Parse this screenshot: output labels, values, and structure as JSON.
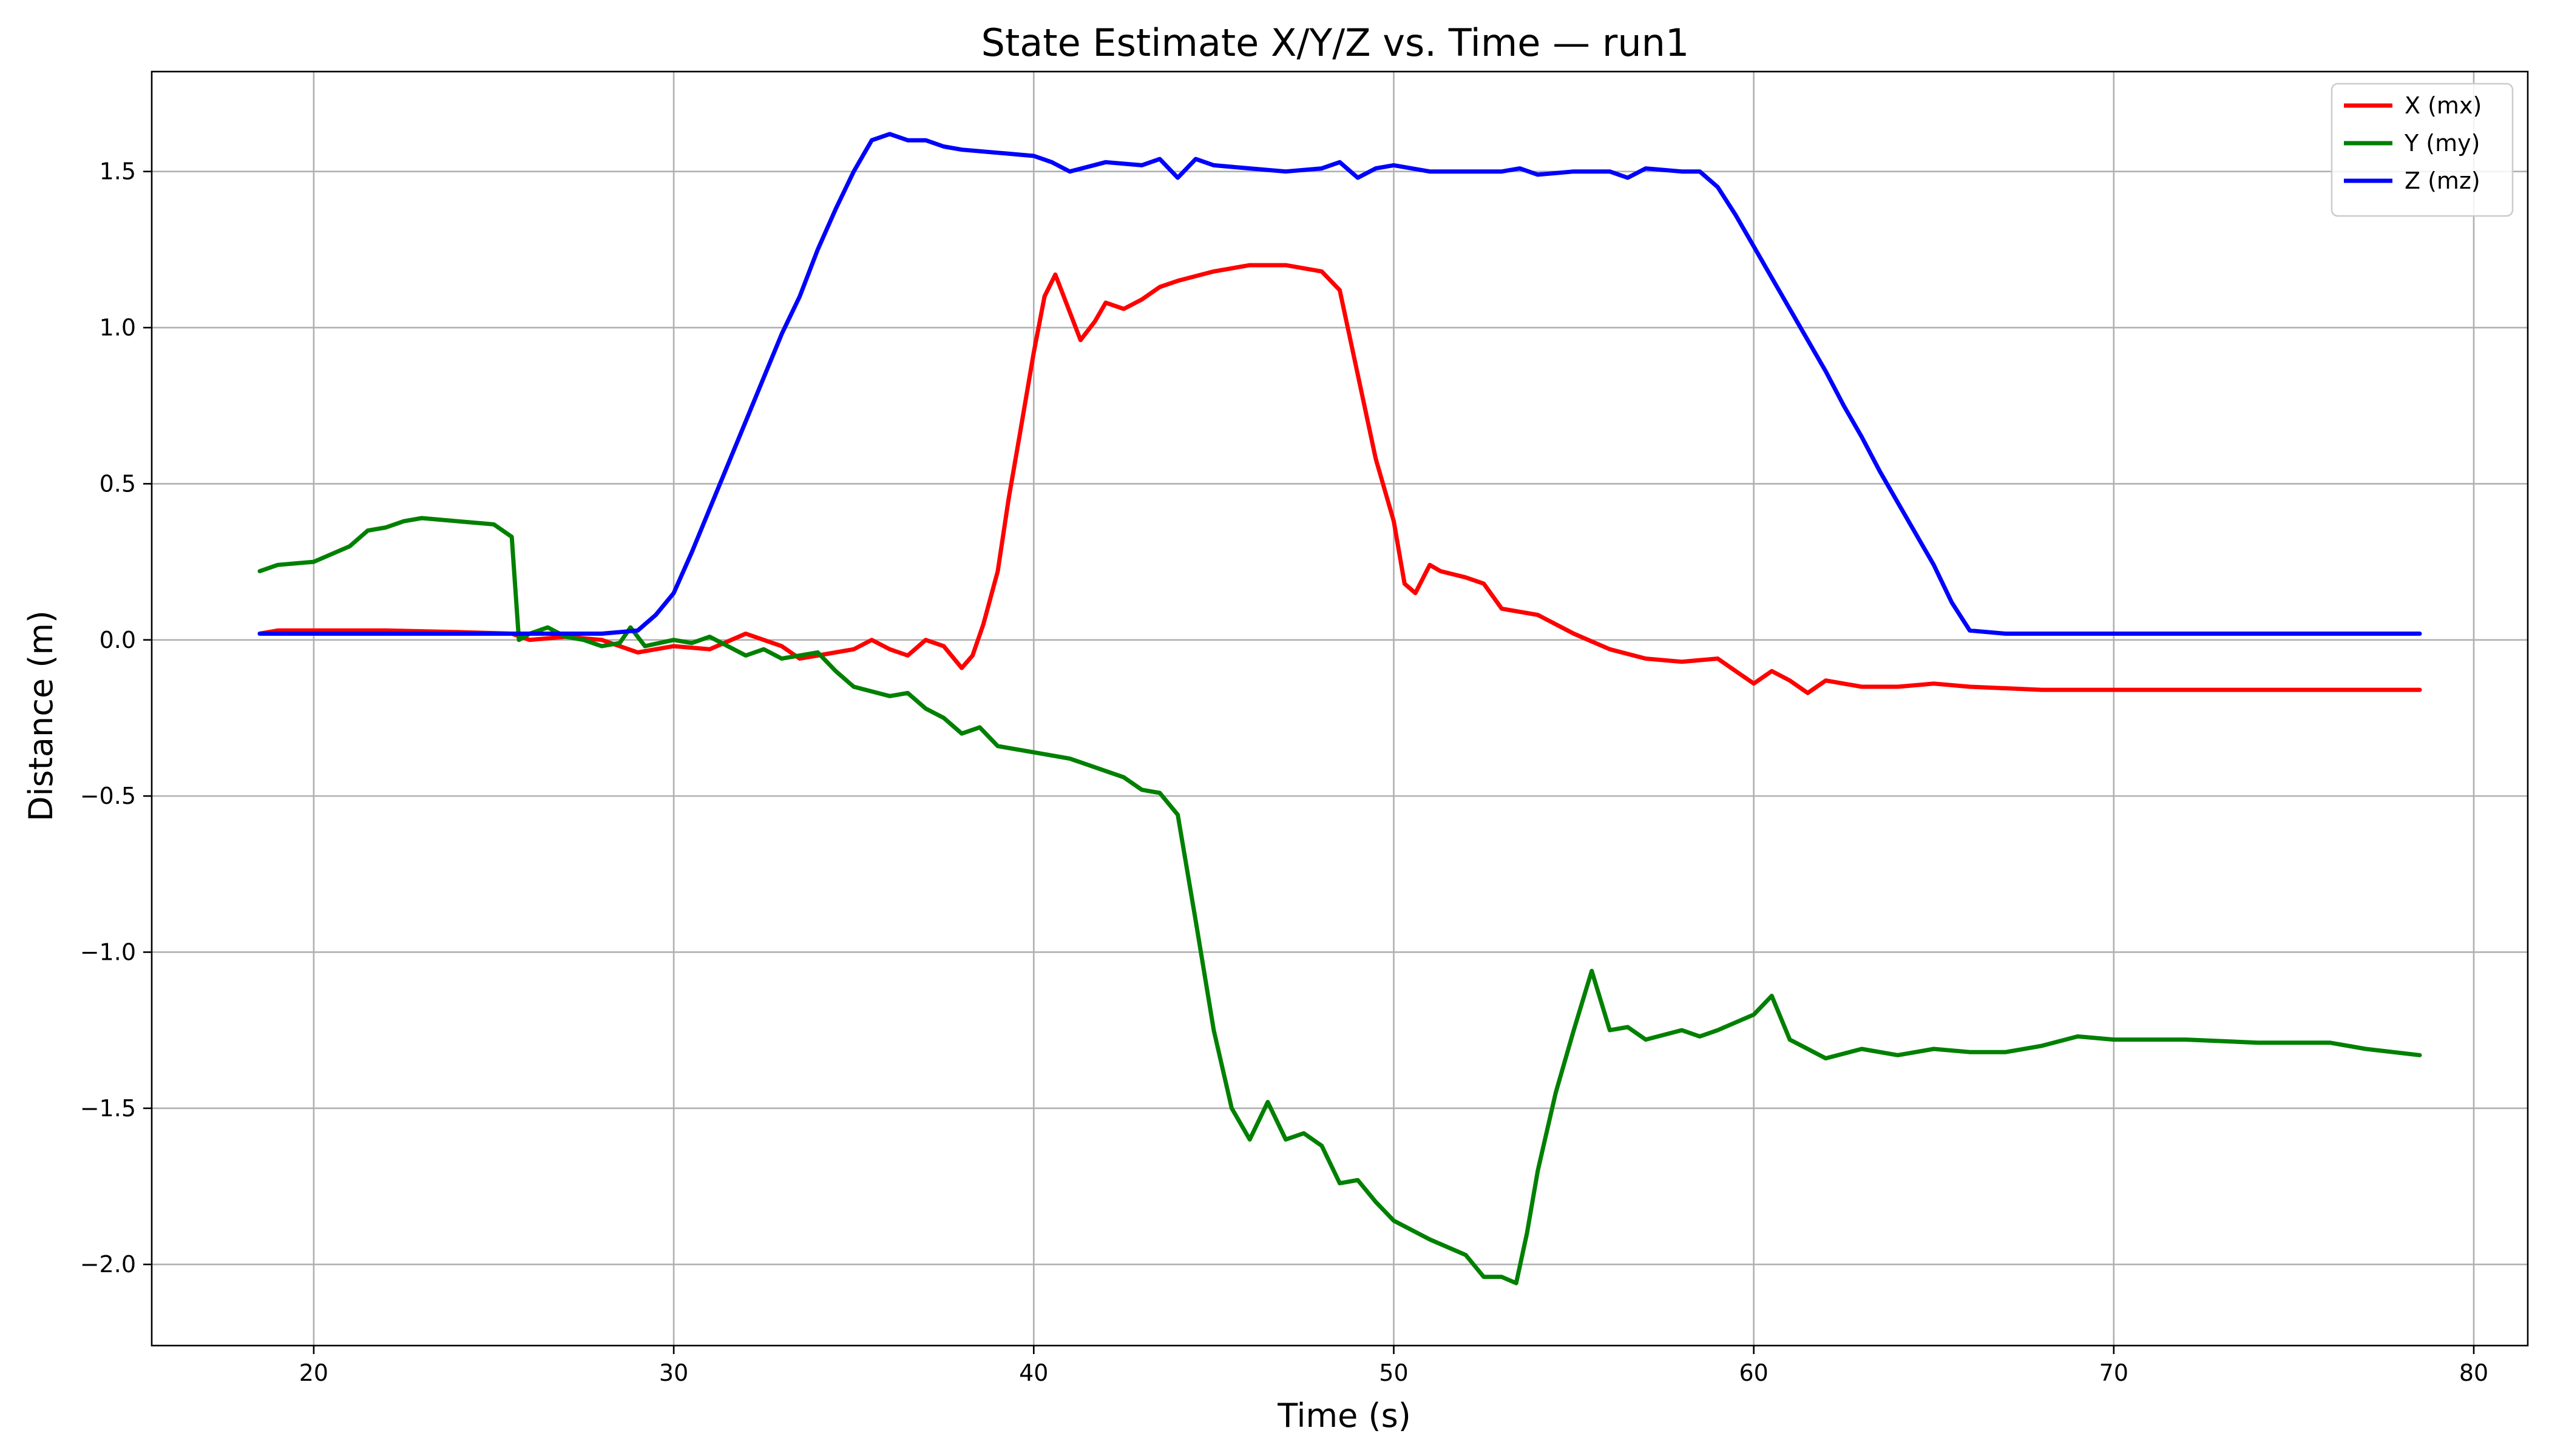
{
  "chart_data": {
    "type": "line",
    "title": "State Estimate X/Y/Z vs. Time — run1",
    "xlabel": "Time (s)",
    "ylabel": "Distance (m)",
    "xlim": [
      15.5,
      81.5
    ],
    "ylim": [
      -2.26,
      1.82
    ],
    "xticks": [
      20,
      30,
      40,
      50,
      60,
      70,
      80
    ],
    "yticks": [
      -2.0,
      -1.5,
      -1.0,
      -0.5,
      0.0,
      0.5,
      1.0,
      1.5
    ],
    "xtick_labels": [
      "20",
      "30",
      "40",
      "50",
      "60",
      "70",
      "80"
    ],
    "ytick_labels": [
      "−2.0",
      "−1.5",
      "−1.0",
      "−0.5",
      "0.0",
      "0.5",
      "1.0",
      "1.5"
    ],
    "grid": true,
    "legend_position": "top-right",
    "series": [
      {
        "name": "X (mx)",
        "color": "#ff0000",
        "points": [
          [
            18.5,
            0.02
          ],
          [
            19,
            0.03
          ],
          [
            20,
            0.03
          ],
          [
            22,
            0.03
          ],
          [
            24,
            0.025
          ],
          [
            25.5,
            0.02
          ],
          [
            26,
            0.0
          ],
          [
            27,
            0.01
          ],
          [
            28,
            0.0
          ],
          [
            28.5,
            -0.02
          ],
          [
            29,
            -0.04
          ],
          [
            30,
            -0.02
          ],
          [
            31,
            -0.03
          ],
          [
            32,
            0.02
          ],
          [
            33,
            -0.02
          ],
          [
            33.5,
            -0.06
          ],
          [
            34,
            -0.05
          ],
          [
            35,
            -0.03
          ],
          [
            35.5,
            0.0
          ],
          [
            36,
            -0.03
          ],
          [
            36.5,
            -0.05
          ],
          [
            37,
            0.0
          ],
          [
            37.5,
            -0.02
          ],
          [
            38,
            -0.09
          ],
          [
            38.3,
            -0.05
          ],
          [
            38.6,
            0.05
          ],
          [
            39,
            0.22
          ],
          [
            39.3,
            0.45
          ],
          [
            39.6,
            0.65
          ],
          [
            40,
            0.92
          ],
          [
            40.3,
            1.1
          ],
          [
            40.6,
            1.17
          ],
          [
            41,
            1.05
          ],
          [
            41.3,
            0.96
          ],
          [
            41.7,
            1.02
          ],
          [
            42,
            1.08
          ],
          [
            42.5,
            1.06
          ],
          [
            43,
            1.09
          ],
          [
            43.5,
            1.13
          ],
          [
            44,
            1.15
          ],
          [
            45,
            1.18
          ],
          [
            46,
            1.2
          ],
          [
            47,
            1.2
          ],
          [
            48,
            1.18
          ],
          [
            48.5,
            1.12
          ],
          [
            49,
            0.85
          ],
          [
            49.5,
            0.58
          ],
          [
            50,
            0.38
          ],
          [
            50.3,
            0.18
          ],
          [
            50.6,
            0.15
          ],
          [
            51,
            0.24
          ],
          [
            51.3,
            0.22
          ],
          [
            52,
            0.2
          ],
          [
            52.5,
            0.18
          ],
          [
            53,
            0.1
          ],
          [
            54,
            0.08
          ],
          [
            55,
            0.02
          ],
          [
            56,
            -0.03
          ],
          [
            57,
            -0.06
          ],
          [
            58,
            -0.07
          ],
          [
            59,
            -0.06
          ],
          [
            59.5,
            -0.1
          ],
          [
            60,
            -0.14
          ],
          [
            60.5,
            -0.1
          ],
          [
            61,
            -0.13
          ],
          [
            61.5,
            -0.17
          ],
          [
            62,
            -0.13
          ],
          [
            63,
            -0.15
          ],
          [
            64,
            -0.15
          ],
          [
            65,
            -0.14
          ],
          [
            66,
            -0.15
          ],
          [
            68,
            -0.16
          ],
          [
            70,
            -0.16
          ],
          [
            72,
            -0.16
          ],
          [
            75,
            -0.16
          ],
          [
            78.5,
            -0.16
          ]
        ]
      },
      {
        "name": "Y (my)",
        "color": "#008000",
        "points": [
          [
            18.5,
            0.22
          ],
          [
            19,
            0.24
          ],
          [
            20,
            0.25
          ],
          [
            21,
            0.3
          ],
          [
            21.5,
            0.35
          ],
          [
            22,
            0.36
          ],
          [
            22.5,
            0.38
          ],
          [
            23,
            0.39
          ],
          [
            24,
            0.38
          ],
          [
            25,
            0.37
          ],
          [
            25.5,
            0.33
          ],
          [
            25.7,
            0.0
          ],
          [
            26,
            0.02
          ],
          [
            26.5,
            0.04
          ],
          [
            27,
            0.01
          ],
          [
            27.5,
            0.0
          ],
          [
            28,
            -0.02
          ],
          [
            28.5,
            -0.01
          ],
          [
            28.8,
            0.04
          ],
          [
            29.2,
            -0.02
          ],
          [
            30,
            0.0
          ],
          [
            30.5,
            -0.01
          ],
          [
            31,
            0.01
          ],
          [
            32,
            -0.05
          ],
          [
            32.5,
            -0.03
          ],
          [
            33,
            -0.06
          ],
          [
            34,
            -0.04
          ],
          [
            34.5,
            -0.1
          ],
          [
            35,
            -0.15
          ],
          [
            36,
            -0.18
          ],
          [
            36.5,
            -0.17
          ],
          [
            37,
            -0.22
          ],
          [
            37.5,
            -0.25
          ],
          [
            38,
            -0.3
          ],
          [
            38.5,
            -0.28
          ],
          [
            39,
            -0.34
          ],
          [
            40,
            -0.36
          ],
          [
            41,
            -0.38
          ],
          [
            42,
            -0.42
          ],
          [
            42.5,
            -0.44
          ],
          [
            43,
            -0.48
          ],
          [
            43.5,
            -0.49
          ],
          [
            44,
            -0.56
          ],
          [
            44.5,
            -0.9
          ],
          [
            45,
            -1.25
          ],
          [
            45.5,
            -1.5
          ],
          [
            46,
            -1.6
          ],
          [
            46.5,
            -1.48
          ],
          [
            47,
            -1.6
          ],
          [
            47.5,
            -1.58
          ],
          [
            48,
            -1.62
          ],
          [
            48.5,
            -1.74
          ],
          [
            49,
            -1.73
          ],
          [
            49.5,
            -1.8
          ],
          [
            50,
            -1.86
          ],
          [
            51,
            -1.92
          ],
          [
            52,
            -1.97
          ],
          [
            52.5,
            -2.04
          ],
          [
            53,
            -2.04
          ],
          [
            53.4,
            -2.06
          ],
          [
            53.7,
            -1.9
          ],
          [
            54,
            -1.7
          ],
          [
            54.5,
            -1.45
          ],
          [
            55,
            -1.25
          ],
          [
            55.5,
            -1.06
          ],
          [
            56,
            -1.25
          ],
          [
            56.5,
            -1.24
          ],
          [
            57,
            -1.28
          ],
          [
            58,
            -1.25
          ],
          [
            58.5,
            -1.27
          ],
          [
            59,
            -1.25
          ],
          [
            60,
            -1.2
          ],
          [
            60.5,
            -1.14
          ],
          [
            61,
            -1.28
          ],
          [
            62,
            -1.34
          ],
          [
            63,
            -1.31
          ],
          [
            64,
            -1.33
          ],
          [
            65,
            -1.31
          ],
          [
            66,
            -1.32
          ],
          [
            67,
            -1.32
          ],
          [
            68,
            -1.3
          ],
          [
            69,
            -1.27
          ],
          [
            70,
            -1.28
          ],
          [
            72,
            -1.28
          ],
          [
            74,
            -1.29
          ],
          [
            76,
            -1.29
          ],
          [
            77,
            -1.31
          ],
          [
            78.5,
            -1.33
          ]
        ]
      },
      {
        "name": "Z (mz)",
        "color": "#0000ff",
        "points": [
          [
            18.5,
            0.02
          ],
          [
            20,
            0.02
          ],
          [
            22,
            0.02
          ],
          [
            24,
            0.02
          ],
          [
            26,
            0.02
          ],
          [
            28,
            0.02
          ],
          [
            29,
            0.03
          ],
          [
            29.5,
            0.08
          ],
          [
            30,
            0.15
          ],
          [
            30.5,
            0.28
          ],
          [
            31,
            0.42
          ],
          [
            31.5,
            0.56
          ],
          [
            32,
            0.7
          ],
          [
            32.5,
            0.84
          ],
          [
            33,
            0.98
          ],
          [
            33.5,
            1.1
          ],
          [
            34,
            1.25
          ],
          [
            34.5,
            1.38
          ],
          [
            35,
            1.5
          ],
          [
            35.5,
            1.6
          ],
          [
            36,
            1.62
          ],
          [
            36.5,
            1.6
          ],
          [
            37,
            1.6
          ],
          [
            37.5,
            1.58
          ],
          [
            38,
            1.57
          ],
          [
            39,
            1.56
          ],
          [
            40,
            1.55
          ],
          [
            40.5,
            1.53
          ],
          [
            41,
            1.5
          ],
          [
            42,
            1.53
          ],
          [
            43,
            1.52
          ],
          [
            43.5,
            1.54
          ],
          [
            44,
            1.48
          ],
          [
            44.5,
            1.54
          ],
          [
            45,
            1.52
          ],
          [
            46,
            1.51
          ],
          [
            47,
            1.5
          ],
          [
            48,
            1.51
          ],
          [
            48.5,
            1.53
          ],
          [
            49,
            1.48
          ],
          [
            49.5,
            1.51
          ],
          [
            50,
            1.52
          ],
          [
            51,
            1.5
          ],
          [
            52,
            1.5
          ],
          [
            53,
            1.5
          ],
          [
            53.5,
            1.51
          ],
          [
            54,
            1.49
          ],
          [
            55,
            1.5
          ],
          [
            56,
            1.5
          ],
          [
            56.5,
            1.48
          ],
          [
            57,
            1.51
          ],
          [
            58,
            1.5
          ],
          [
            58.5,
            1.5
          ],
          [
            59,
            1.45
          ],
          [
            59.5,
            1.36
          ],
          [
            60,
            1.26
          ],
          [
            60.5,
            1.16
          ],
          [
            61,
            1.06
          ],
          [
            61.5,
            0.96
          ],
          [
            62,
            0.86
          ],
          [
            62.5,
            0.75
          ],
          [
            63,
            0.65
          ],
          [
            63.5,
            0.54
          ],
          [
            64,
            0.44
          ],
          [
            64.5,
            0.34
          ],
          [
            65,
            0.24
          ],
          [
            65.5,
            0.12
          ],
          [
            66,
            0.03
          ],
          [
            67,
            0.02
          ],
          [
            70,
            0.02
          ],
          [
            73,
            0.02
          ],
          [
            76,
            0.02
          ],
          [
            78.5,
            0.02
          ]
        ]
      }
    ]
  }
}
